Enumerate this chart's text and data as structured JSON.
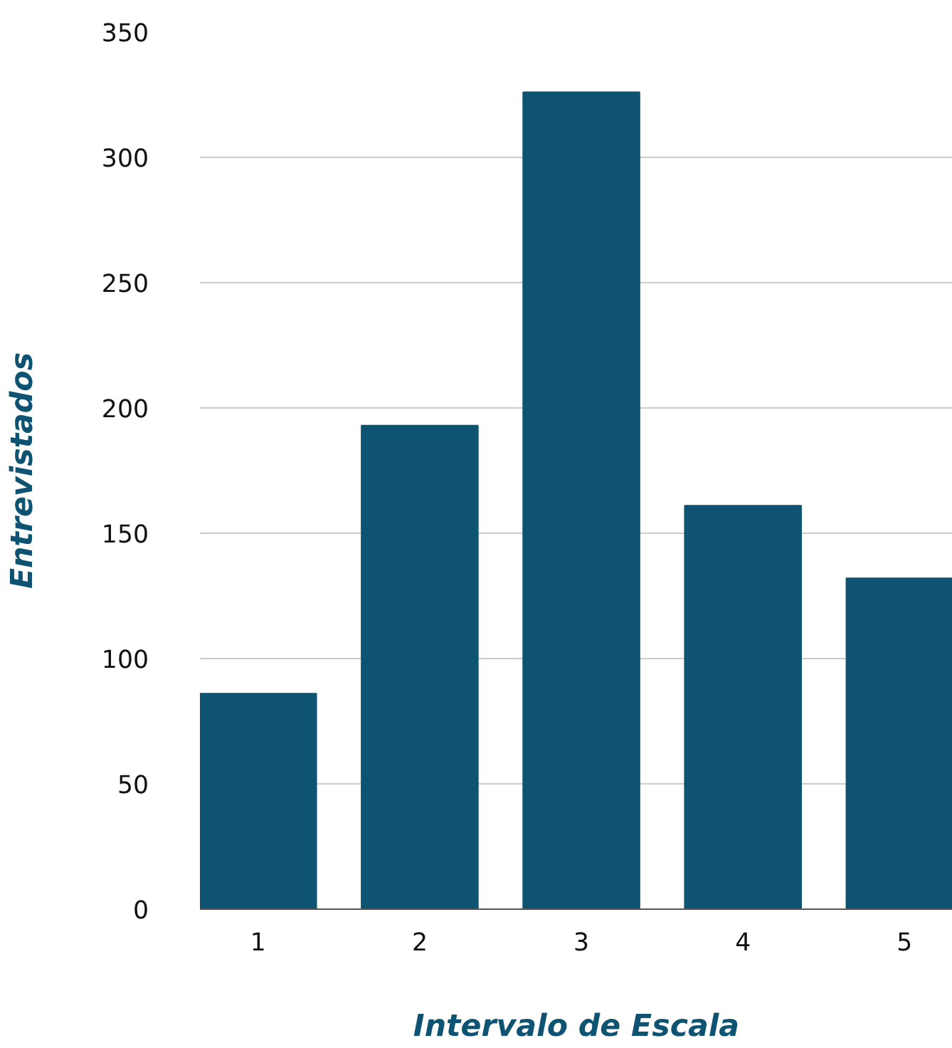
{
  "chart_data": {
    "type": "bar",
    "xlabel": "Intervalo de Escala",
    "ylabel": "Entrevistados",
    "categories": [
      "1",
      "2",
      "3",
      "4",
      "5"
    ],
    "values": [
      86,
      193,
      326,
      161,
      132
    ],
    "color": "#0e5472",
    "ylim": [
      0,
      350
    ],
    "yticks": [
      0,
      50,
      100,
      150,
      200,
      250,
      300,
      350
    ],
    "grid": "y"
  }
}
